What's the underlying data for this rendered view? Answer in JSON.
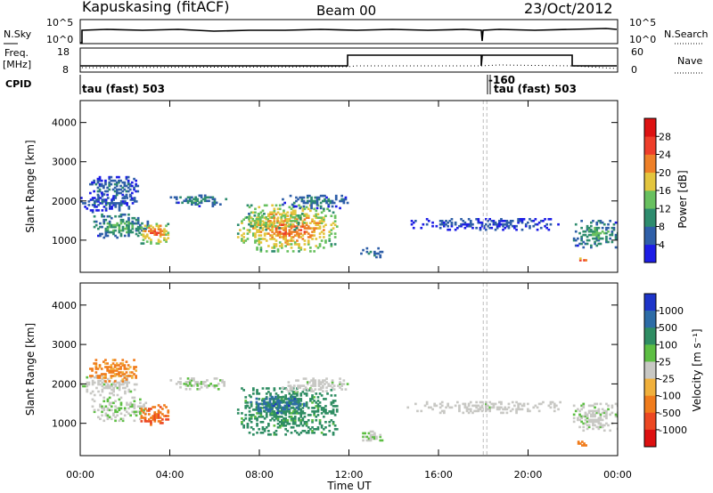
{
  "header": {
    "station": "Kapuskasing (fitACF)",
    "beam": "Beam 00",
    "date": "23/Oct/2012"
  },
  "side_labels": {
    "nsky": "N.Sky",
    "freq": "Freq.",
    "freq_unit": "[MHz]",
    "cpid": "CPID",
    "nsearch": "N.Search",
    "nave": "Nave"
  },
  "small_ticks": {
    "noise_left": [
      "10^5",
      "10^0"
    ],
    "noise_right": [
      "10^5",
      "10^0"
    ],
    "freq_left": [
      "18",
      "8"
    ],
    "freq_right": [
      "60",
      "0"
    ]
  },
  "cpid": {
    "label1": "tau (fast) 503",
    "label2": "tau (fast) 503",
    "neg": "-160"
  },
  "chart_data": {
    "type": "heatmap",
    "xlabel": "Time UT",
    "xticks": [
      "00:00",
      "04:00",
      "08:00",
      "12:00",
      "16:00",
      "20:00",
      "00:00"
    ],
    "xlim_hours": [
      0,
      24
    ],
    "ylabel": "Slant Range [km]",
    "yticks": [
      "1000",
      "2000",
      "3000",
      "4000"
    ],
    "ylim_km": [
      180,
      4560
    ],
    "cpid_change_hour": 18.0,
    "power": {
      "label": "Power [dB]",
      "ticks": [
        "4",
        "8",
        "12",
        "16",
        "20",
        "24",
        "28"
      ],
      "colors": [
        "#1d1de6",
        "#2f5fa8",
        "#2e8c6e",
        "#68c05f",
        "#e3c53e",
        "#ee8028",
        "#ee3e2a",
        "#dd1212"
      ]
    },
    "velocity": {
      "label": "Velocity [m s⁻¹]",
      "ticks": [
        "1000",
        "500",
        "100",
        "25",
        "-25",
        "-100",
        "-500",
        "-1000"
      ],
      "colors": [
        "#1d34c9",
        "#2d6ca6",
        "#2f8d63",
        "#5dbe43",
        "#c8c8c4",
        "#f0b03c",
        "#f07c1c",
        "#ec4822",
        "#dd1010"
      ]
    },
    "echo_regions": [
      {
        "h0": 0.5,
        "h1": 3.0,
        "r0": 1050,
        "r1": 1650,
        "power_dB": 11,
        "vel_ms": 20
      },
      {
        "h0": 0.0,
        "h1": 2.5,
        "r0": 1700,
        "r1": 2200,
        "power_dB": 6,
        "vel_ms": 10
      },
      {
        "h0": 2.6,
        "h1": 4.0,
        "r0": 900,
        "r1": 1450,
        "power_dB": 23,
        "vel_ms": -400
      },
      {
        "h0": 0.4,
        "h1": 2.6,
        "r0": 2050,
        "r1": 2600,
        "power_dB": 7,
        "vel_ms": -150
      },
      {
        "h0": 4.0,
        "h1": 6.5,
        "r0": 1850,
        "r1": 2150,
        "power_dB": 9,
        "vel_ms": 15
      },
      {
        "h0": 7.0,
        "h1": 11.5,
        "r0": 700,
        "r1": 1900,
        "power_dB": 22,
        "vel_ms": 180
      },
      {
        "h0": 7.4,
        "h1": 10.0,
        "r0": 1250,
        "r1": 1700,
        "power_dB": 18,
        "vel_ms": 650
      },
      {
        "h0": 9.0,
        "h1": 12.0,
        "r0": 1800,
        "r1": 2150,
        "power_dB": 8,
        "vel_ms": 10
      },
      {
        "h0": 12.5,
        "h1": 13.5,
        "r0": 550,
        "r1": 800,
        "power_dB": 8,
        "vel_ms": 25
      },
      {
        "h0": 14.5,
        "h1": 21.5,
        "r0": 1250,
        "r1": 1550,
        "power_dB": 5,
        "vel_ms": 8
      },
      {
        "h0": 22.0,
        "h1": 24.0,
        "r0": 800,
        "r1": 1500,
        "power_dB": 11,
        "vel_ms": 12
      },
      {
        "h0": 22.2,
        "h1": 22.6,
        "r0": 380,
        "r1": 550,
        "power_dB": 27,
        "vel_ms": -200
      }
    ]
  }
}
